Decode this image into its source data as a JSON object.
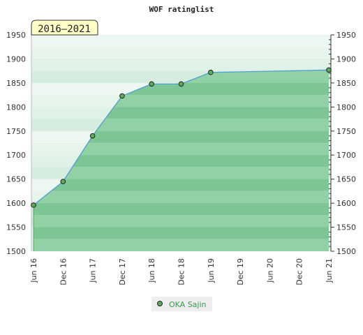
{
  "chart_data": {
    "type": "area",
    "title": "WOF ratinglist",
    "period_label": "2016–2021",
    "ylim": [
      1500,
      1950
    ],
    "yticks": [
      "1500",
      "1550",
      "1600",
      "1650",
      "1700",
      "1750",
      "1800",
      "1850",
      "1900",
      "1950"
    ],
    "x_labels": [
      "Jun 16",
      "Dec 16",
      "Jun 17",
      "Dec 17",
      "Jun 18",
      "Dec 18",
      "Jun 19",
      "Dec 19",
      "Jun 20",
      "Dec 20",
      "Jun 21"
    ],
    "grid": true,
    "legend_position": "bottom",
    "series": [
      {
        "name": "OKA Sajin",
        "color": "#4f9fd0",
        "marker_color": "#5aab5a",
        "points": [
          {
            "x": "Jun 16",
            "y": 1596
          },
          {
            "x": "Dec 16",
            "y": 1645
          },
          {
            "x": "Jun 17",
            "y": 1740
          },
          {
            "x": "Dec 17",
            "y": 1823
          },
          {
            "x": "Jun 18",
            "y": 1848
          },
          {
            "x": "Dec 18",
            "y": 1848
          },
          {
            "x": "Jun 19",
            "y": 1872
          },
          {
            "x": "Jun 21",
            "y": 1877
          }
        ]
      }
    ]
  }
}
